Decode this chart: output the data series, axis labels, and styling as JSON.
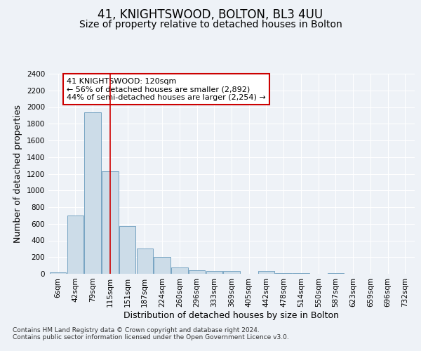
{
  "title": "41, KNIGHTSWOOD, BOLTON, BL3 4UU",
  "subtitle": "Size of property relative to detached houses in Bolton",
  "xlabel": "Distribution of detached houses by size in Bolton",
  "ylabel": "Number of detached properties",
  "categories": [
    "6sqm",
    "42sqm",
    "79sqm",
    "115sqm",
    "151sqm",
    "187sqm",
    "224sqm",
    "260sqm",
    "296sqm",
    "333sqm",
    "369sqm",
    "405sqm",
    "442sqm",
    "478sqm",
    "514sqm",
    "550sqm",
    "587sqm",
    "623sqm",
    "659sqm",
    "696sqm",
    "732sqm"
  ],
  "values": [
    15,
    700,
    1940,
    1230,
    575,
    300,
    200,
    80,
    40,
    35,
    35,
    0,
    30,
    5,
    5,
    0,
    5,
    0,
    0,
    0,
    0
  ],
  "bar_color": "#ccdce8",
  "bar_edge_color": "#6699bb",
  "vline_x_index": 3,
  "vline_color": "#cc0000",
  "annotation_text": "41 KNIGHTSWOOD: 120sqm\n← 56% of detached houses are smaller (2,892)\n44% of semi-detached houses are larger (2,254) →",
  "annotation_box_color": "#ffffff",
  "annotation_box_edge": "#cc0000",
  "ylim": [
    0,
    2400
  ],
  "yticks": [
    0,
    200,
    400,
    600,
    800,
    1000,
    1200,
    1400,
    1600,
    1800,
    2000,
    2200,
    2400
  ],
  "footnote": "Contains HM Land Registry data © Crown copyright and database right 2024.\nContains public sector information licensed under the Open Government Licence v3.0.",
  "background_color": "#eef2f7",
  "grid_color": "#ffffff",
  "title_fontsize": 12,
  "subtitle_fontsize": 10,
  "axis_label_fontsize": 9,
  "tick_fontsize": 7.5,
  "annotation_fontsize": 8,
  "footnote_fontsize": 6.5
}
